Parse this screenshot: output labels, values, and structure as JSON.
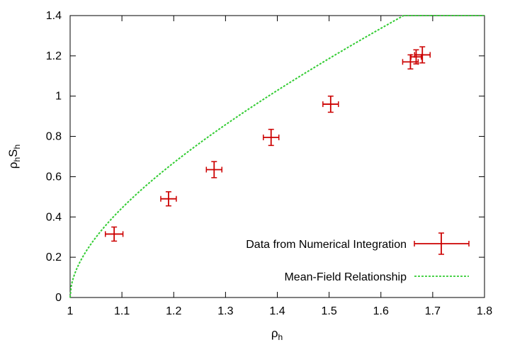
{
  "chart_data": {
    "type": "scatter",
    "xlabel": "ρh",
    "ylabel": "ρhSh",
    "xlim": [
      1.0,
      1.8
    ],
    "ylim": [
      0.0,
      1.4
    ],
    "x_ticks": [
      "1",
      "1.1",
      "1.2",
      "1.3",
      "1.4",
      "1.5",
      "1.6",
      "1.7",
      "1.8"
    ],
    "y_ticks": [
      "0",
      "0.2",
      "0.4",
      "0.6",
      "0.8",
      "1",
      "1.2",
      "1.4"
    ],
    "grid": false,
    "legend_position": "bottom-right",
    "series": [
      {
        "name": "Data from Numerical Integration",
        "style": "errorbars",
        "color": "#cc0000",
        "points": [
          {
            "x": 1.085,
            "y": 0.315,
            "xerr": 0.017,
            "yerr": 0.035
          },
          {
            "x": 1.19,
            "y": 0.49,
            "xerr": 0.015,
            "yerr": 0.035
          },
          {
            "x": 1.278,
            "y": 0.635,
            "xerr": 0.015,
            "yerr": 0.04
          },
          {
            "x": 1.388,
            "y": 0.795,
            "xerr": 0.015,
            "yerr": 0.04
          },
          {
            "x": 1.503,
            "y": 0.96,
            "xerr": 0.015,
            "yerr": 0.04
          },
          {
            "x": 1.657,
            "y": 1.17,
            "xerr": 0.015,
            "yerr": 0.035
          },
          {
            "x": 1.668,
            "y": 1.195,
            "xerr": 0.01,
            "yerr": 0.035
          },
          {
            "x": 1.68,
            "y": 1.205,
            "xerr": 0.015,
            "yerr": 0.04
          }
        ]
      },
      {
        "name": "Mean-Field Relationship",
        "style": "dashed-line",
        "color": "#33cc33",
        "function": "y = sqrt(1.4*(x-1)) + 0.7*(x-1)",
        "x_range": [
          1.0,
          1.8
        ]
      }
    ]
  }
}
